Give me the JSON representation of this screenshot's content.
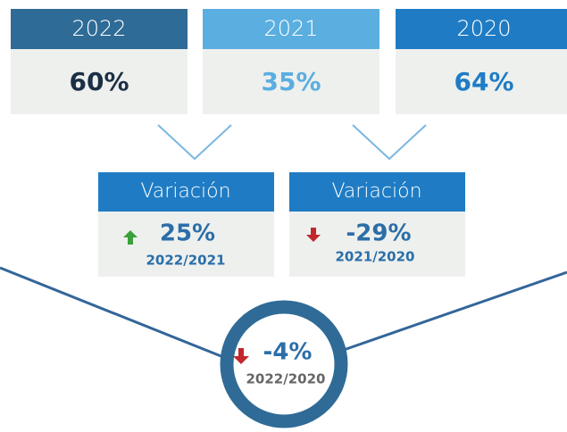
{
  "years": [
    {
      "year": "2022",
      "value": "60%"
    },
    {
      "year": "2021",
      "value": "35%"
    },
    {
      "year": "2020",
      "value": "64%"
    }
  ],
  "variations": [
    {
      "label": "Variación",
      "value": "25%",
      "period": "2022/2021"
    },
    {
      "label": "Variación",
      "value": "-29%",
      "period": "2021/2020"
    }
  ],
  "total": {
    "value": "-4%",
    "period": "2022/2020"
  }
}
